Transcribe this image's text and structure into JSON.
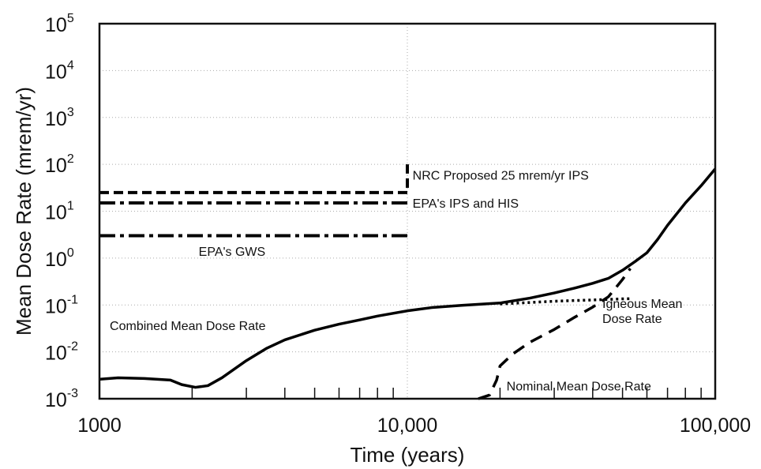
{
  "chart_data": {
    "type": "line",
    "title": "",
    "xlabel": "Time (years)",
    "ylabel": "Mean Dose Rate (mrem/yr)",
    "xscale": "log",
    "yscale": "log",
    "xlim": [
      1000,
      100000
    ],
    "ylim": [
      0.001,
      100000
    ],
    "grid": "major dotted",
    "x_ticks": [
      {
        "value": 1000,
        "label": "1000"
      },
      {
        "value": 10000,
        "label": "10,000"
      },
      {
        "value": 100000,
        "label": "100,000"
      }
    ],
    "y_ticks": [
      {
        "value": 0.001,
        "base": "10",
        "exp": "-3"
      },
      {
        "value": 0.01,
        "base": "10",
        "exp": "-2"
      },
      {
        "value": 0.1,
        "base": "10",
        "exp": "-1"
      },
      {
        "value": 1,
        "base": "10",
        "exp": "0"
      },
      {
        "value": 10,
        "base": "10",
        "exp": "1"
      },
      {
        "value": 100,
        "base": "10",
        "exp": "2"
      },
      {
        "value": 1000,
        "base": "10",
        "exp": "3"
      },
      {
        "value": 10000,
        "base": "10",
        "exp": "4"
      },
      {
        "value": 100000,
        "base": "10",
        "exp": "5"
      }
    ],
    "series": [
      {
        "label": "Combined Mean Dose Rate",
        "style": "solid",
        "points": [
          [
            1000,
            0.0026
          ],
          [
            1150,
            0.0028
          ],
          [
            1400,
            0.0027
          ],
          [
            1700,
            0.0025
          ],
          [
            1850,
            0.002
          ],
          [
            2050,
            0.00175
          ],
          [
            2250,
            0.0019
          ],
          [
            2500,
            0.0028
          ],
          [
            3000,
            0.0065
          ],
          [
            3500,
            0.012
          ],
          [
            4000,
            0.018
          ],
          [
            5000,
            0.029
          ],
          [
            6000,
            0.039
          ],
          [
            7000,
            0.048
          ],
          [
            8000,
            0.058
          ],
          [
            10000,
            0.075
          ],
          [
            12000,
            0.088
          ],
          [
            15000,
            0.098
          ],
          [
            20000,
            0.11
          ],
          [
            25000,
            0.14
          ],
          [
            30000,
            0.18
          ],
          [
            35000,
            0.23
          ],
          [
            40000,
            0.29
          ],
          [
            45000,
            0.37
          ],
          [
            50000,
            0.55
          ],
          [
            55000,
            0.85
          ],
          [
            60000,
            1.3
          ],
          [
            65000,
            2.5
          ],
          [
            70000,
            5
          ],
          [
            80000,
            15
          ],
          [
            90000,
            35
          ],
          [
            100000,
            80
          ]
        ]
      },
      {
        "label": "Nominal Mean Dose Rate",
        "style": "dashed",
        "points": [
          [
            17000,
            0.001
          ],
          [
            18500,
            0.0012
          ],
          [
            19500,
            0.0025
          ],
          [
            20000,
            0.005
          ],
          [
            22000,
            0.009
          ],
          [
            25000,
            0.016
          ],
          [
            30000,
            0.03
          ],
          [
            35000,
            0.055
          ],
          [
            40000,
            0.09
          ],
          [
            45000,
            0.15
          ],
          [
            50000,
            0.35
          ],
          [
            53000,
            0.6
          ]
        ]
      },
      {
        "label": "Igneous Mean Dose Rate",
        "style": "dotted",
        "points": [
          [
            20000,
            0.105
          ],
          [
            30000,
            0.12
          ],
          [
            40000,
            0.128
          ],
          [
            50000,
            0.135
          ],
          [
            53000,
            0.136
          ]
        ]
      },
      {
        "label": "NRC Proposed 25 mrem/yr IPS",
        "style": "dashed-heavy",
        "points": [
          [
            1000,
            25
          ],
          [
            10000,
            25
          ],
          [
            10000,
            100
          ]
        ]
      },
      {
        "label": "EPA's IPS and HIS",
        "style": "dash-dot",
        "points": [
          [
            1000,
            15
          ],
          [
            10000,
            15
          ]
        ]
      },
      {
        "label": "EPA's GWS",
        "style": "dash-dot",
        "points": [
          [
            1000,
            3
          ],
          [
            10000,
            3
          ]
        ]
      }
    ],
    "annotations": [
      {
        "text": "NRC Proposed 25 mrem/yr IPS",
        "x": 10400,
        "y": 60
      },
      {
        "text": "EPA's IPS and HIS",
        "x": 10400,
        "y": 15
      },
      {
        "text": "EPA's GWS",
        "x": 2100,
        "y": 1.4
      },
      {
        "text": "Combined Mean Dose Rate",
        "x": 1080,
        "y": 0.037
      },
      {
        "text": "Igneous Mean",
        "x": 43000,
        "y": 0.11
      },
      {
        "text": "Dose Rate",
        "x": 43000,
        "y": 0.052
      },
      {
        "text": "Nominal Mean Dose Rate",
        "x": 21000,
        "y": 0.0019
      }
    ]
  }
}
